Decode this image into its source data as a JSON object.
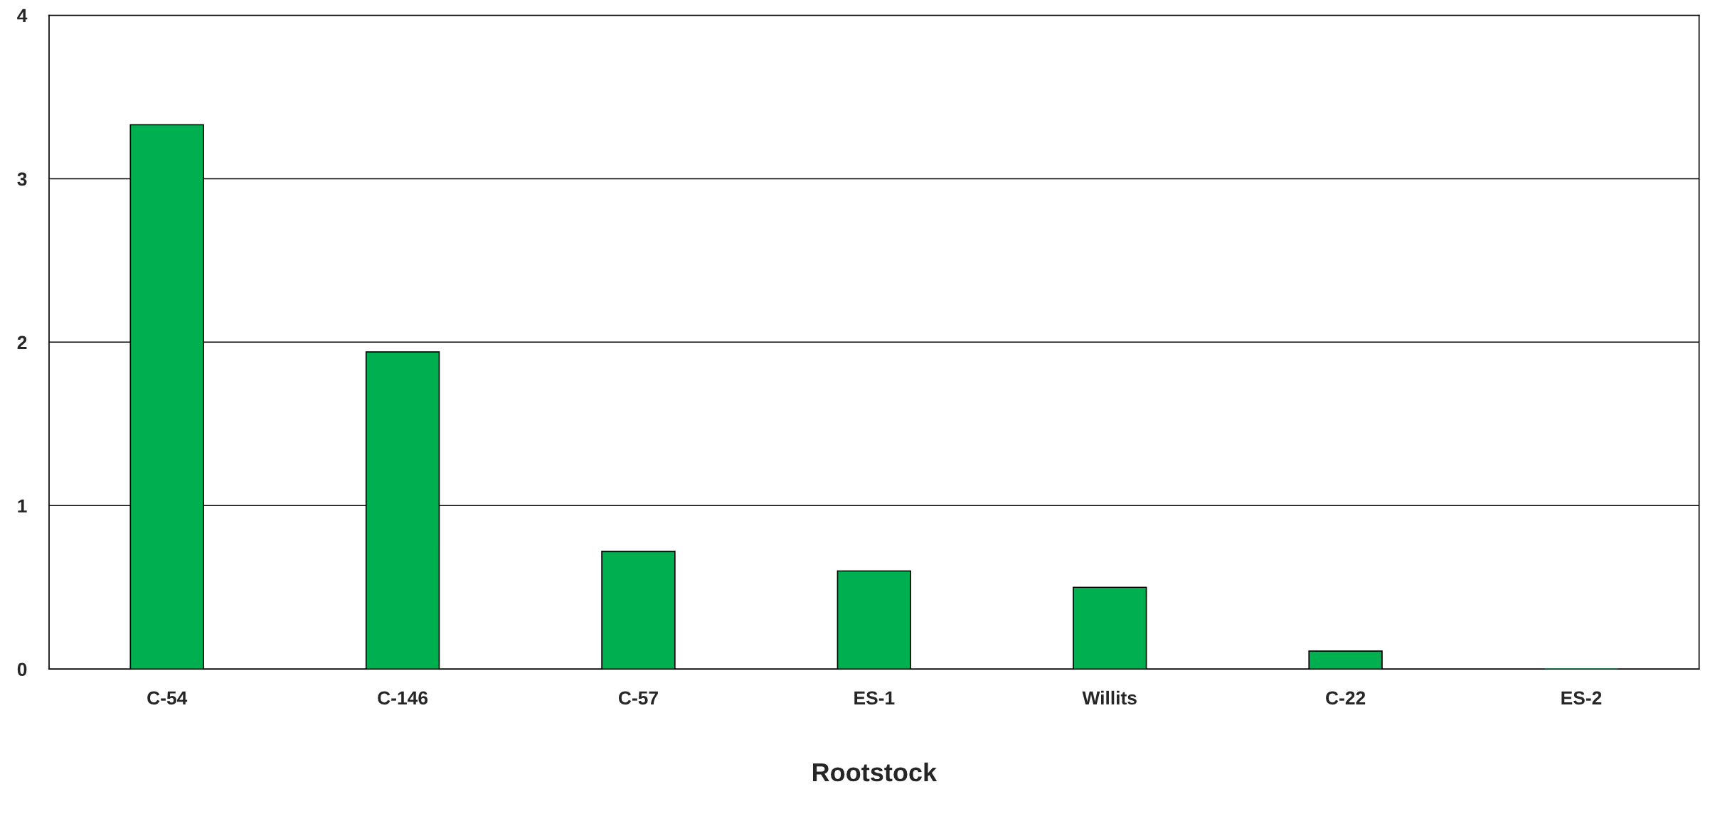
{
  "chart_data": {
    "type": "bar",
    "xlabel": "Rootstock",
    "categories": [
      "C-54",
      "C-146",
      "C-57",
      "ES-1",
      "Willits",
      "C-22",
      "ES-2"
    ],
    "values": [
      3.33,
      1.94,
      0.72,
      0.6,
      0.5,
      0.11,
      0
    ],
    "color": "#00b050",
    "ylim": [
      0,
      4
    ],
    "yticks": [
      0,
      1,
      2,
      3,
      4
    ],
    "grid": "y"
  }
}
